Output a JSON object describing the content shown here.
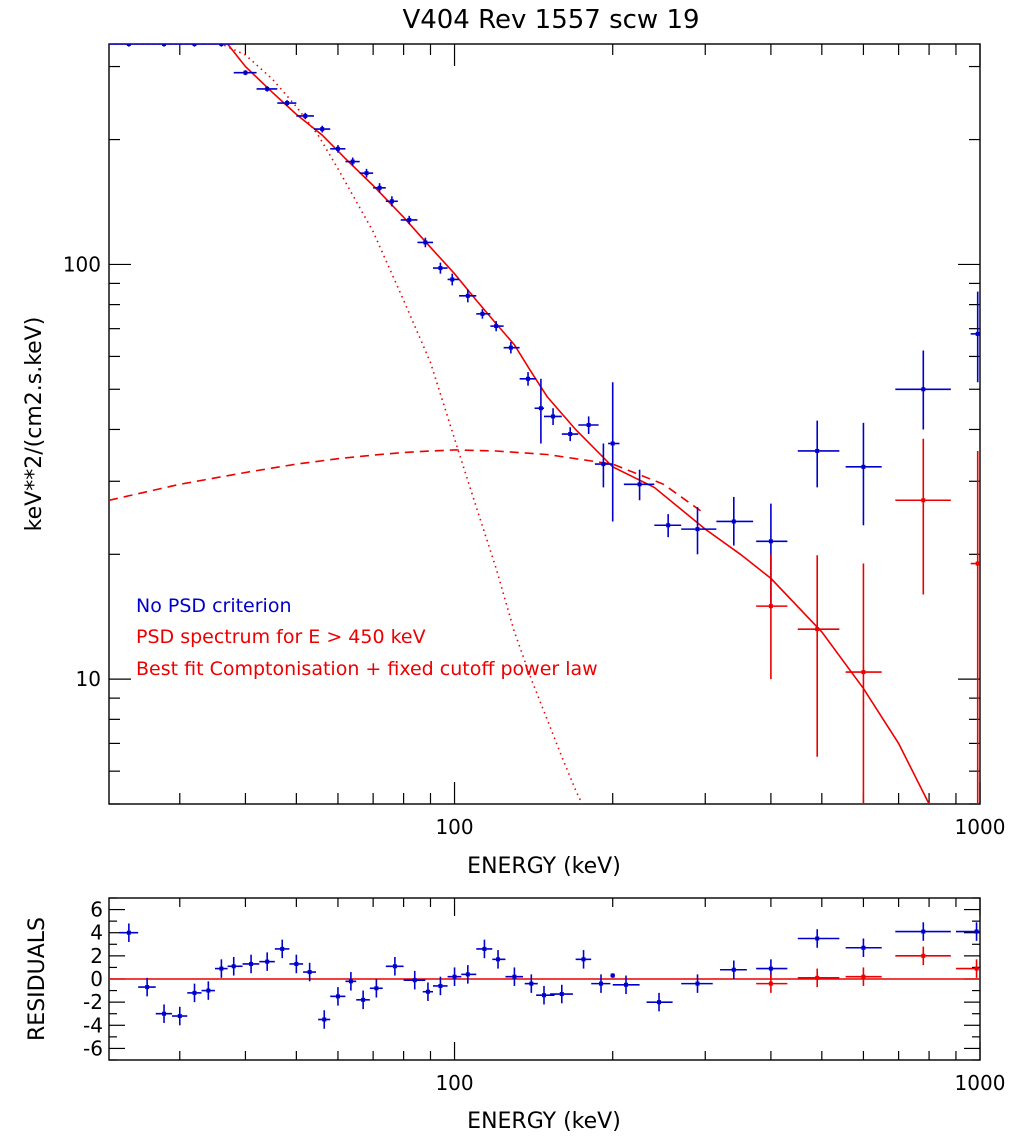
{
  "colors": {
    "no_psd": "#0000cc",
    "psd": "#ee0000",
    "model": "#ee0000",
    "axes": "#000000"
  },
  "chart_data": [
    {
      "type": "scatter",
      "panel": "spectrum",
      "title": "V404 Rev 1557 scw 19",
      "xlabel": "ENERGY (keV)",
      "ylabel": "keV**2/(cm2.s.keV)",
      "xscale": "log",
      "yscale": "log",
      "xlim": [
        22,
        1000
      ],
      "ylim": [
        5,
        340
      ],
      "x_ticks": [
        100,
        1000
      ],
      "x_tick_labels": [
        "100",
        "1000"
      ],
      "y_ticks": [
        10,
        100
      ],
      "y_tick_labels": [
        "10",
        "100"
      ],
      "legend_position": "bottom-left",
      "legend": [
        {
          "text": "No PSD criterion",
          "color": "#0000cc"
        },
        {
          "text": "PSD spectrum for E > 450 keV",
          "color": "#ee0000"
        },
        {
          "text": "Best fit Comptonisation + fixed cutoff power law",
          "color": "#ee0000"
        }
      ],
      "series": [
        {
          "style": "points-with-errorbars",
          "color": "#0000cc",
          "points": [
            {
              "x": 24,
              "xlo": 22,
              "xhi": 26,
              "y": 340,
              "ylo": 335,
              "yhi": 345
            },
            {
              "x": 28,
              "xlo": 26,
              "xhi": 30,
              "y": 340,
              "ylo": 335,
              "yhi": 345
            },
            {
              "x": 32,
              "xlo": 30,
              "xhi": 34,
              "y": 340,
              "ylo": 335,
              "yhi": 345
            },
            {
              "x": 36,
              "xlo": 34,
              "xhi": 38,
              "y": 340,
              "ylo": 335,
              "yhi": 345
            },
            {
              "x": 40,
              "xlo": 38,
              "xhi": 42,
              "y": 290,
              "ylo": 286,
              "yhi": 294
            },
            {
              "x": 44,
              "xlo": 42,
              "xhi": 46,
              "y": 265,
              "ylo": 261,
              "yhi": 269
            },
            {
              "x": 48,
              "xlo": 46,
              "xhi": 50,
              "y": 245,
              "ylo": 241,
              "yhi": 249
            },
            {
              "x": 52,
              "xlo": 50,
              "xhi": 54,
              "y": 228,
              "ylo": 224,
              "yhi": 232
            },
            {
              "x": 56,
              "xlo": 54,
              "xhi": 58,
              "y": 212,
              "ylo": 208,
              "yhi": 216
            },
            {
              "x": 60,
              "xlo": 58,
              "xhi": 62,
              "y": 190,
              "ylo": 186,
              "yhi": 194
            },
            {
              "x": 64,
              "xlo": 62,
              "xhi": 66,
              "y": 177,
              "ylo": 173,
              "yhi": 181
            },
            {
              "x": 68,
              "xlo": 66,
              "xhi": 70,
              "y": 166,
              "ylo": 162,
              "yhi": 170
            },
            {
              "x": 72,
              "xlo": 70,
              "xhi": 74,
              "y": 153,
              "ylo": 149,
              "yhi": 157
            },
            {
              "x": 76,
              "xlo": 74,
              "xhi": 78,
              "y": 142,
              "ylo": 138,
              "yhi": 146
            },
            {
              "x": 82,
              "xlo": 79,
              "xhi": 85,
              "y": 128,
              "ylo": 125,
              "yhi": 131
            },
            {
              "x": 88,
              "xlo": 85,
              "xhi": 91,
              "y": 113,
              "ylo": 110,
              "yhi": 116
            },
            {
              "x": 94,
              "xlo": 91,
              "xhi": 97,
              "y": 98,
              "ylo": 95,
              "yhi": 101
            },
            {
              "x": 99,
              "xlo": 97,
              "xhi": 102,
              "y": 92,
              "ylo": 89,
              "yhi": 95
            },
            {
              "x": 106,
              "xlo": 102,
              "xhi": 110,
              "y": 84,
              "ylo": 81,
              "yhi": 87
            },
            {
              "x": 113,
              "xlo": 110,
              "xhi": 117,
              "y": 76,
              "ylo": 74,
              "yhi": 78
            },
            {
              "x": 120,
              "xlo": 117,
              "xhi": 124,
              "y": 71,
              "ylo": 69,
              "yhi": 73
            },
            {
              "x": 128,
              "xlo": 124,
              "xhi": 133,
              "y": 63,
              "ylo": 61,
              "yhi": 65
            },
            {
              "x": 138,
              "xlo": 133,
              "xhi": 143,
              "y": 53,
              "ylo": 51,
              "yhi": 55
            },
            {
              "x": 146,
              "xlo": 142,
              "xhi": 148,
              "y": 45,
              "ylo": 37,
              "yhi": 53
            },
            {
              "x": 154,
              "xlo": 148,
              "xhi": 160,
              "y": 43,
              "ylo": 41,
              "yhi": 45
            },
            {
              "x": 166,
              "xlo": 160,
              "xhi": 172,
              "y": 39,
              "ylo": 37.5,
              "yhi": 40.5
            },
            {
              "x": 180,
              "xlo": 172,
              "xhi": 188,
              "y": 41,
              "ylo": 39,
              "yhi": 43
            },
            {
              "x": 192,
              "xlo": 185,
              "xhi": 200,
              "y": 33,
              "ylo": 29,
              "yhi": 37
            },
            {
              "x": 200,
              "xlo": 196,
              "xhi": 206,
              "y": 37,
              "ylo": 24,
              "yhi": 52
            },
            {
              "x": 225,
              "xlo": 210,
              "xhi": 240,
              "y": 29.5,
              "ylo": 27,
              "yhi": 32
            },
            {
              "x": 255,
              "xlo": 240,
              "xhi": 270,
              "y": 23.5,
              "ylo": 22,
              "yhi": 25
            },
            {
              "x": 290,
              "xlo": 270,
              "xhi": 315,
              "y": 23,
              "ylo": 20,
              "yhi": 26
            },
            {
              "x": 340,
              "xlo": 315,
              "xhi": 370,
              "y": 24,
              "ylo": 21,
              "yhi": 27.5
            },
            {
              "x": 400,
              "xlo": 375,
              "xhi": 430,
              "y": 21.5,
              "ylo": 15,
              "yhi": 26.5
            },
            {
              "x": 490,
              "xlo": 450,
              "xhi": 540,
              "y": 35.5,
              "ylo": 29,
              "yhi": 42
            },
            {
              "x": 600,
              "xlo": 555,
              "xhi": 650,
              "y": 32.5,
              "ylo": 23.5,
              "yhi": 41.5
            },
            {
              "x": 780,
              "xlo": 690,
              "xhi": 880,
              "y": 50,
              "ylo": 40,
              "yhi": 62
            },
            {
              "x": 990,
              "xlo": 960,
              "xhi": 1000,
              "y": 68,
              "ylo": 52,
              "yhi": 86
            }
          ]
        },
        {
          "style": "points-with-errorbars",
          "color": "#ee0000",
          "points": [
            {
              "x": 400,
              "xlo": 375,
              "xhi": 430,
              "y": 15,
              "ylo": 10,
              "yhi": 20
            },
            {
              "x": 490,
              "xlo": 450,
              "xhi": 540,
              "y": 13.2,
              "ylo": 6.5,
              "yhi": 19.9
            },
            {
              "x": 600,
              "xlo": 555,
              "xhi": 650,
              "y": 10.4,
              "ylo": 4.5,
              "yhi": 19
            },
            {
              "x": 780,
              "xlo": 690,
              "xhi": 880,
              "y": 27,
              "ylo": 16,
              "yhi": 38
            },
            {
              "x": 990,
              "xlo": 960,
              "xhi": 1000,
              "y": 19,
              "ylo": 4.5,
              "yhi": 35.5
            }
          ]
        },
        {
          "style": "solid-line",
          "color": "#ee0000",
          "x": [
            36,
            40,
            45,
            50,
            56,
            62,
            70,
            80,
            90,
            100,
            110,
            120,
            130,
            140,
            150,
            170,
            200,
            240,
            300,
            350,
            400,
            500,
            600,
            700,
            800
          ],
          "y": [
            355,
            300,
            260,
            230,
            205,
            180,
            155,
            130,
            110,
            95,
            82,
            72,
            64,
            55,
            48,
            40,
            32.5,
            29,
            23,
            20,
            17.5,
            13,
            9.5,
            7,
            5
          ]
        },
        {
          "style": "dashed-line",
          "color": "#ee0000",
          "x": [
            22,
            30,
            40,
            50,
            60,
            70,
            80,
            90,
            100,
            120,
            150,
            200,
            250,
            300
          ],
          "y": [
            27,
            29.5,
            31.5,
            33,
            34,
            34.7,
            35.2,
            35.5,
            35.7,
            35.5,
            34.8,
            33,
            29.5,
            25
          ]
        },
        {
          "style": "dotted-line",
          "color": "#ee0000",
          "x": [
            22,
            30,
            36,
            40,
            45,
            50,
            55,
            60,
            70,
            80,
            90,
            100,
            110,
            120,
            130,
            140,
            150,
            160,
            170,
            175
          ],
          "y": [
            340,
            340,
            340,
            320,
            280,
            240,
            205,
            170,
            120,
            82,
            58,
            38,
            26,
            18.5,
            13,
            10,
            8,
            6.5,
            5.4,
            5
          ]
        }
      ]
    },
    {
      "type": "scatter",
      "panel": "residuals",
      "xlabel": "ENERGY (keV)",
      "ylabel": "RESIDUALS",
      "xscale": "log",
      "xlim": [
        22,
        1000
      ],
      "ylim": [
        -7,
        7
      ],
      "x_ticks": [
        100,
        1000
      ],
      "x_tick_labels": [
        "100",
        "1000"
      ],
      "y_ticks": [
        -6,
        -4,
        -2,
        0,
        2,
        4,
        6
      ],
      "y_tick_labels": [
        "-6",
        "-4",
        "-2",
        "0",
        "2",
        "4",
        "6"
      ],
      "zero_line_color": "#ee0000",
      "series": [
        {
          "style": "points-with-errorbars",
          "color": "#0000cc",
          "points": [
            {
              "x": 24,
              "xlo": 23,
              "xhi": 25,
              "y": 4,
              "err": 0.8
            },
            {
              "x": 26,
              "xlo": 25,
              "xhi": 27,
              "y": -0.7,
              "err": 0.8
            },
            {
              "x": 28,
              "xlo": 27,
              "xhi": 29,
              "y": -3.0,
              "err": 0.8
            },
            {
              "x": 30,
              "xlo": 29,
              "xhi": 31,
              "y": -3.2,
              "err": 0.8
            },
            {
              "x": 32,
              "xlo": 31,
              "xhi": 33,
              "y": -1.2,
              "err": 0.8
            },
            {
              "x": 34,
              "xlo": 33,
              "xhi": 35,
              "y": -1.0,
              "err": 0.8
            },
            {
              "x": 36,
              "xlo": 35,
              "xhi": 37,
              "y": 0.9,
              "err": 0.8
            },
            {
              "x": 38,
              "xlo": 37,
              "xhi": 39.5,
              "y": 1.1,
              "err": 0.8
            },
            {
              "x": 41,
              "xlo": 39.5,
              "xhi": 42.5,
              "y": 1.3,
              "err": 0.8
            },
            {
              "x": 44,
              "xlo": 42.5,
              "xhi": 45.5,
              "y": 1.5,
              "err": 0.8
            },
            {
              "x": 47,
              "xlo": 45.5,
              "xhi": 48.5,
              "y": 2.6,
              "err": 0.8
            },
            {
              "x": 50,
              "xlo": 48.5,
              "xhi": 51.5,
              "y": 1.3,
              "err": 0.8
            },
            {
              "x": 53,
              "xlo": 51.5,
              "xhi": 54.5,
              "y": 0.6,
              "err": 0.8
            },
            {
              "x": 56.5,
              "xlo": 55,
              "xhi": 58,
              "y": -3.5,
              "err": 0.8
            },
            {
              "x": 60,
              "xlo": 58,
              "xhi": 62,
              "y": -1.5,
              "err": 0.8
            },
            {
              "x": 63.5,
              "xlo": 62,
              "xhi": 65,
              "y": -0.2,
              "err": 0.8
            },
            {
              "x": 67,
              "xlo": 65,
              "xhi": 69,
              "y": -1.8,
              "err": 0.8
            },
            {
              "x": 71,
              "xlo": 69,
              "xhi": 73,
              "y": -0.8,
              "err": 0.8
            },
            {
              "x": 77,
              "xlo": 74,
              "xhi": 80,
              "y": 1.1,
              "err": 0.8
            },
            {
              "x": 84,
              "xlo": 80,
              "xhi": 88,
              "y": -0.1,
              "err": 0.8
            },
            {
              "x": 89,
              "xlo": 87,
              "xhi": 91,
              "y": -1.1,
              "err": 0.8
            },
            {
              "x": 94,
              "xlo": 91,
              "xhi": 97,
              "y": -0.6,
              "err": 0.8
            },
            {
              "x": 100,
              "xlo": 97,
              "xhi": 103,
              "y": 0.2,
              "err": 0.8
            },
            {
              "x": 106,
              "xlo": 103,
              "xhi": 110,
              "y": 0.4,
              "err": 0.8
            },
            {
              "x": 114,
              "xlo": 110,
              "xhi": 118,
              "y": 2.6,
              "err": 0.8
            },
            {
              "x": 121,
              "xlo": 118,
              "xhi": 125,
              "y": 1.7,
              "err": 0.8
            },
            {
              "x": 130,
              "xlo": 125,
              "xhi": 135,
              "y": 0.2,
              "err": 0.8
            },
            {
              "x": 140,
              "xlo": 136,
              "xhi": 144,
              "y": -0.4,
              "err": 0.8
            },
            {
              "x": 148,
              "xlo": 143,
              "xhi": 155,
              "y": -1.4,
              "err": 0.8
            },
            {
              "x": 160,
              "xlo": 152,
              "xhi": 168,
              "y": -1.3,
              "err": 0.8
            },
            {
              "x": 176,
              "xlo": 170,
              "xhi": 182,
              "y": 1.7,
              "err": 0.8
            },
            {
              "x": 190,
              "xlo": 182,
              "xhi": 198,
              "y": -0.4,
              "err": 0.8
            },
            {
              "x": 200,
              "xlo": 198,
              "xhi": 202,
              "y": 0.3,
              "err": 0.2
            },
            {
              "x": 212,
              "xlo": 200,
              "xhi": 225,
              "y": -0.5,
              "err": 0.8
            },
            {
              "x": 245,
              "xlo": 232,
              "xhi": 260,
              "y": -2.0,
              "err": 0.8
            },
            {
              "x": 290,
              "xlo": 270,
              "xhi": 310,
              "y": -0.4,
              "err": 0.8
            },
            {
              "x": 340,
              "xlo": 320,
              "xhi": 360,
              "y": 0.8,
              "err": 0.8
            },
            {
              "x": 400,
              "xlo": 375,
              "xhi": 430,
              "y": 0.9,
              "err": 0.8
            },
            {
              "x": 490,
              "xlo": 450,
              "xhi": 540,
              "y": 3.5,
              "err": 0.8
            },
            {
              "x": 600,
              "xlo": 555,
              "xhi": 650,
              "y": 2.7,
              "err": 0.8
            },
            {
              "x": 780,
              "xlo": 690,
              "xhi": 880,
              "y": 4.1,
              "err": 0.8
            },
            {
              "x": 985,
              "xlo": 900,
              "xhi": 1000,
              "y": 4.1,
              "err": 0.8
            }
          ]
        },
        {
          "style": "points-with-errorbars",
          "color": "#ee0000",
          "points": [
            {
              "x": 400,
              "xlo": 375,
              "xhi": 430,
              "y": -0.4,
              "err": 0.8
            },
            {
              "x": 490,
              "xlo": 450,
              "xhi": 540,
              "y": 0.1,
              "err": 0.8
            },
            {
              "x": 600,
              "xlo": 555,
              "xhi": 650,
              "y": 0.2,
              "err": 0.8
            },
            {
              "x": 780,
              "xlo": 690,
              "xhi": 880,
              "y": 2.0,
              "err": 0.8
            },
            {
              "x": 985,
              "xlo": 900,
              "xhi": 1000,
              "y": 0.9,
              "err": 0.8
            }
          ]
        }
      ]
    }
  ]
}
